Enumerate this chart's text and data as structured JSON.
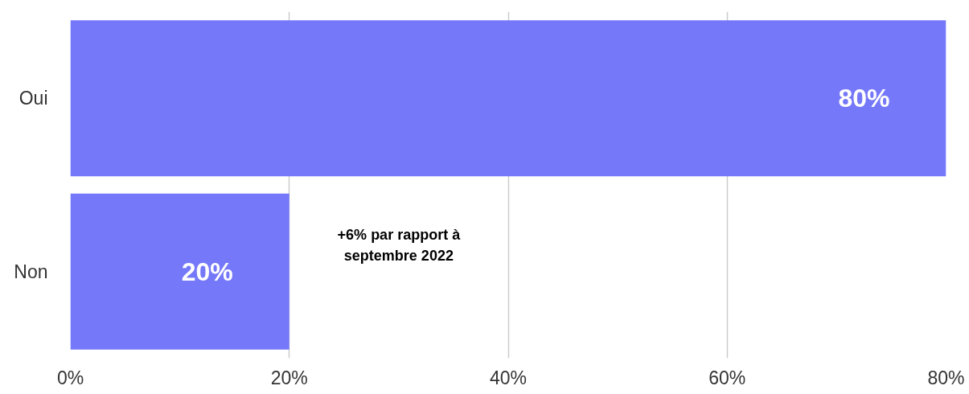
{
  "chart_data": {
    "type": "bar",
    "orientation": "horizontal",
    "categories": [
      "Oui",
      "Non"
    ],
    "values": [
      80,
      20
    ],
    "color": "#7578f8",
    "value_labels": [
      "80%",
      "20%"
    ],
    "xlim": [
      0,
      80
    ],
    "xticks": [
      {
        "value": 0,
        "label": "0%"
      },
      {
        "value": 20,
        "label": "20%"
      },
      {
        "value": 40,
        "label": "40%"
      },
      {
        "value": 60,
        "label": "60%"
      },
      {
        "value": 80,
        "label": "80%"
      }
    ],
    "grid": "x",
    "annotations": [
      "+6% par rapport à septembre 2022"
    ]
  }
}
